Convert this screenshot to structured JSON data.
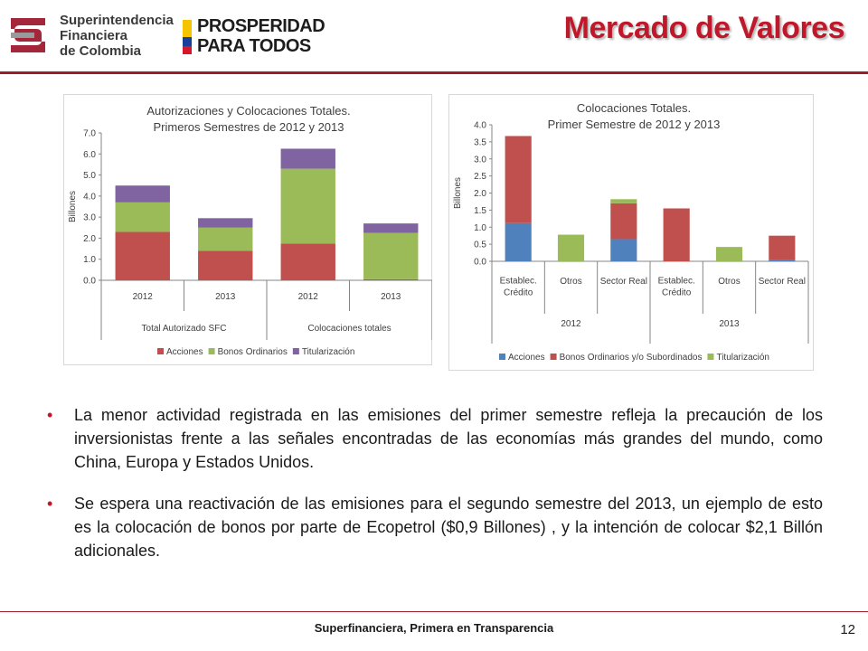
{
  "header": {
    "sfc_logo_lines": [
      "Superintendencia",
      "Financiera",
      "de Colombia"
    ],
    "pp_logo_lines": [
      "PROSPERIDAD",
      "PARA TODOS"
    ],
    "title": "Mercado de Valores"
  },
  "colors": {
    "acciones": "#c0504d",
    "bonos": "#9bbb59",
    "titularizacion": "#8064a2",
    "acciones_c2": "#4f81bd",
    "bonos_c2": "#c0504d",
    "titularizacion_c2": "#9bbb59",
    "title_red": "#c0182b"
  },
  "chart_data": [
    {
      "type": "bar",
      "stacked": true,
      "title": "Autorizaciones y Colocaciones Totales.\nPrimeros Semestres de 2012 y 2013",
      "title_lines": [
        "Autorizaciones y Colocaciones Totales.",
        "Primeros Semestres de 2012 y 2013"
      ],
      "ylabel": "Billones",
      "xlabel": "",
      "ylim": [
        0,
        7
      ],
      "yticks": [
        "0.0",
        "1.0",
        "2.0",
        "3.0",
        "4.0",
        "5.0",
        "6.0",
        "7.0"
      ],
      "categories": [
        "2012",
        "2013",
        "2012",
        "2013"
      ],
      "groups": [
        {
          "label": "Total Autorizado SFC",
          "span": 2
        },
        {
          "label": "Colocaciones totales",
          "span": 2
        }
      ],
      "series": [
        {
          "name": "Acciones",
          "values": [
            2.3,
            1.4,
            1.75,
            0.05
          ]
        },
        {
          "name": "Bonos Ordinarios",
          "values": [
            1.4,
            1.1,
            3.55,
            2.2
          ]
        },
        {
          "name": "Titularización",
          "values": [
            0.8,
            0.45,
            0.95,
            0.45
          ]
        }
      ],
      "legend": "bottom",
      "grid": false
    },
    {
      "type": "bar",
      "stacked": true,
      "title": "Colocaciones Totales.\nPrimer  Semestre de 2012 y 2013",
      "title_lines": [
        "Colocaciones Totales.",
        "Primer  Semestre de 2012 y 2013"
      ],
      "ylabel": "Billones",
      "xlabel": "",
      "ylim": [
        0,
        4
      ],
      "yticks": [
        "0.0",
        "0.5",
        "1.0",
        "1.5",
        "2.0",
        "2.5",
        "3.0",
        "3.5",
        "4.0"
      ],
      "categories": [
        "Establec. Crédito",
        "Otros",
        "Sector Real",
        "Establec. Crédito",
        "Otros",
        "Sector Real"
      ],
      "category_lines": [
        [
          "Establec.",
          "Crédito"
        ],
        [
          "Otros"
        ],
        [
          "Sector Real"
        ],
        [
          "Establec.",
          "Crédito"
        ],
        [
          "Otros"
        ],
        [
          "Sector Real"
        ]
      ],
      "groups": [
        {
          "label": "2012",
          "span": 3
        },
        {
          "label": "2013",
          "span": 3
        }
      ],
      "series": [
        {
          "name": "Acciones",
          "values": [
            1.12,
            0,
            0.65,
            0,
            0,
            0.03
          ]
        },
        {
          "name": "Bonos Ordinarios y/o Subordinados",
          "values": [
            2.55,
            0,
            1.05,
            1.55,
            0,
            0.72
          ]
        },
        {
          "name": "Titularización",
          "values": [
            0,
            0.78,
            0.12,
            0,
            0.42,
            0
          ]
        }
      ],
      "legend": "bottom",
      "grid": false
    }
  ],
  "bullets": [
    "La menor actividad registrada en las emisiones del primer semestre refleja la precaución de los inversionistas frente a las señales encontradas de las economías más grandes del mundo, como China, Europa y Estados Unidos.",
    "Se espera una reactivación de las emisiones para el segundo semestre del 2013, un ejemplo de esto es la colocación de bonos por parte de Ecopetrol ($0,9 Billones) , y la intención de colocar $2,1 Billón adicionales."
  ],
  "footer": {
    "text": "Superfinanciera, Primera en Transparencia",
    "page_number": "12"
  }
}
